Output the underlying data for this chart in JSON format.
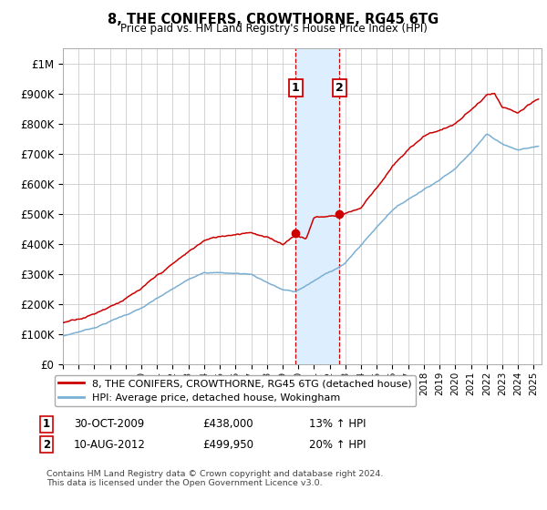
{
  "title": "8, THE CONIFERS, CROWTHORNE, RG45 6TG",
  "subtitle": "Price paid vs. HM Land Registry's House Price Index (HPI)",
  "red_label": "8, THE CONIFERS, CROWTHORNE, RG45 6TG (detached house)",
  "blue_label": "HPI: Average price, detached house, Wokingham",
  "sale1_date": "30-OCT-2009",
  "sale1_price": 438000,
  "sale1_hpi": "13% ↑ HPI",
  "sale2_date": "10-AUG-2012",
  "sale2_price": 499950,
  "sale2_hpi": "20% ↑ HPI",
  "sale1_x": 2009.83,
  "sale2_x": 2012.61,
  "footnote": "Contains HM Land Registry data © Crown copyright and database right 2024.\nThis data is licensed under the Open Government Licence v3.0.",
  "ylim": [
    0,
    1050000
  ],
  "xlim": [
    1995,
    2025.5
  ],
  "yticks": [
    0,
    100000,
    200000,
    300000,
    400000,
    500000,
    600000,
    700000,
    800000,
    900000,
    1000000
  ],
  "ytick_labels": [
    "£0",
    "£100K",
    "£200K",
    "£300K",
    "£400K",
    "£500K",
    "£600K",
    "£700K",
    "£800K",
    "£900K",
    "£1M"
  ],
  "bg_color": "#ffffff",
  "grid_color": "#cccccc",
  "red_color": "#cc0000",
  "blue_color": "#7aafd4",
  "shade_color": "#ddeeff"
}
